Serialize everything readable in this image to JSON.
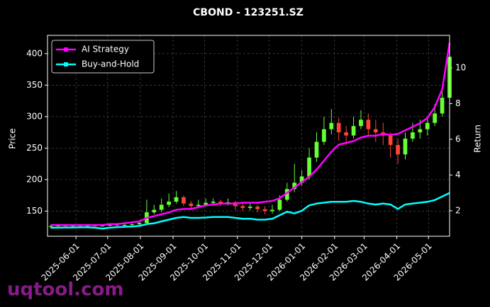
{
  "chart_data": {
    "type": "candlestick",
    "title": "CBOND - 123251.SZ",
    "y_label": "Price",
    "y2_label": "Return",
    "watermark": "uqtool.com",
    "x": [
      "2025-05-08",
      "2025-05-15",
      "2025-05-22",
      "2025-05-29",
      "2025-06-05",
      "2025-06-12",
      "2025-06-19",
      "2025-06-26",
      "2025-07-03",
      "2025-07-10",
      "2025-07-17",
      "2025-07-24",
      "2025-07-31",
      "2025-08-07",
      "2025-08-14",
      "2025-08-21",
      "2025-08-28",
      "2025-09-04",
      "2025-09-11",
      "2025-09-18",
      "2025-09-25",
      "2025-10-02",
      "2025-10-09",
      "2025-10-16",
      "2025-10-23",
      "2025-10-30",
      "2025-11-06",
      "2025-11-13",
      "2025-11-20",
      "2025-11-27",
      "2025-12-04",
      "2025-12-11",
      "2025-12-18",
      "2025-12-25",
      "2026-01-01",
      "2026-01-08",
      "2026-01-15",
      "2026-01-22",
      "2026-01-29",
      "2026-02-05",
      "2026-02-12",
      "2026-02-19",
      "2026-02-26",
      "2026-03-05",
      "2026-03-12",
      "2026-03-19",
      "2026-03-26",
      "2026-04-02",
      "2026-04-09",
      "2026-04-16",
      "2026-04-23",
      "2026-04-30",
      "2026-05-07",
      "2026-05-14",
      "2026-05-21"
    ],
    "open": [
      125,
      126,
      127,
      126,
      127,
      126,
      127,
      126,
      127,
      128,
      127,
      128,
      129,
      131,
      148,
      152,
      160,
      165,
      172,
      162,
      158,
      160,
      163,
      165,
      162,
      164,
      158,
      155,
      157,
      153,
      150,
      152,
      168,
      185,
      195,
      205,
      235,
      260,
      280,
      290,
      275,
      270,
      285,
      295,
      280,
      275,
      270,
      255,
      240,
      265,
      275,
      280,
      290,
      305,
      330
    ],
    "high": [
      128,
      129,
      129,
      129,
      128,
      129,
      129,
      129,
      130,
      130,
      130,
      132,
      135,
      168,
      160,
      170,
      178,
      182,
      175,
      166,
      168,
      170,
      170,
      168,
      170,
      166,
      162,
      162,
      160,
      158,
      160,
      175,
      195,
      225,
      215,
      250,
      275,
      300,
      312,
      298,
      285,
      300,
      310,
      305,
      295,
      290,
      275,
      265,
      275,
      290,
      295,
      300,
      320,
      345,
      410
    ],
    "low": [
      123,
      124,
      124,
      125,
      124,
      125,
      124,
      125,
      126,
      125,
      126,
      127,
      128,
      130,
      145,
      148,
      156,
      162,
      158,
      152,
      155,
      157,
      160,
      158,
      159,
      152,
      150,
      151,
      148,
      145,
      146,
      150,
      165,
      180,
      190,
      200,
      228,
      255,
      272,
      262,
      255,
      265,
      280,
      270,
      260,
      255,
      235,
      225,
      232,
      260,
      265,
      270,
      285,
      300,
      320
    ],
    "close": [
      126,
      127,
      126,
      127,
      126,
      127,
      126,
      127,
      128,
      127,
      128,
      129,
      131,
      148,
      152,
      160,
      165,
      172,
      162,
      158,
      160,
      163,
      165,
      162,
      164,
      158,
      155,
      157,
      153,
      150,
      152,
      168,
      185,
      195,
      205,
      235,
      260,
      280,
      290,
      275,
      270,
      285,
      295,
      280,
      275,
      270,
      255,
      240,
      265,
      275,
      280,
      290,
      305,
      330,
      395
    ],
    "up_color": "#66ff33",
    "down_color": "#ff4433",
    "series": [
      {
        "name": "AI Strategy",
        "color": "#ff00ff",
        "axis": "y2",
        "values": [
          1.2,
          1.2,
          1.2,
          1.2,
          1.2,
          1.2,
          1.2,
          1.2,
          1.25,
          1.25,
          1.3,
          1.35,
          1.4,
          1.6,
          1.7,
          1.8,
          1.9,
          2.05,
          2.1,
          2.1,
          2.2,
          2.3,
          2.35,
          2.4,
          2.4,
          2.4,
          2.45,
          2.45,
          2.45,
          2.5,
          2.55,
          2.7,
          3.0,
          3.3,
          3.6,
          3.9,
          4.3,
          4.8,
          5.3,
          5.7,
          5.8,
          5.9,
          6.1,
          6.2,
          6.2,
          6.3,
          6.25,
          6.3,
          6.5,
          6.7,
          6.9,
          7.2,
          7.8,
          8.8,
          11.4
        ]
      },
      {
        "name": "Buy-and-Hold",
        "color": "#00ffff",
        "axis": "y2",
        "values": [
          1.05,
          1.05,
          1.06,
          1.06,
          1.07,
          1.07,
          1.05,
          1.0,
          1.05,
          1.08,
          1.1,
          1.12,
          1.15,
          1.25,
          1.3,
          1.4,
          1.5,
          1.6,
          1.65,
          1.6,
          1.6,
          1.62,
          1.65,
          1.65,
          1.65,
          1.6,
          1.55,
          1.55,
          1.5,
          1.5,
          1.55,
          1.75,
          1.95,
          1.85,
          2.0,
          2.3,
          2.4,
          2.45,
          2.5,
          2.5,
          2.5,
          2.55,
          2.5,
          2.4,
          2.35,
          2.4,
          2.35,
          2.1,
          2.35,
          2.4,
          2.45,
          2.5,
          2.6,
          2.8,
          3.0
        ]
      }
    ],
    "xlim": [
      "2025-05-05",
      "2026-05-21"
    ],
    "xticks": [
      "2025-06-01",
      "2025-07-01",
      "2025-08-01",
      "2025-09-01",
      "2025-10-01",
      "2025-11-01",
      "2025-12-01",
      "2026-01-01",
      "2026-02-01",
      "2026-03-01",
      "2026-04-01",
      "2026-05-01"
    ],
    "ylim": [
      110,
      429
    ],
    "yticks": [
      150,
      200,
      250,
      300,
      350,
      400
    ],
    "y2lim": [
      0.57,
      11.82
    ],
    "y2ticks": [
      2,
      4,
      6,
      8,
      10
    ],
    "grid": true,
    "legend": "upper left"
  }
}
